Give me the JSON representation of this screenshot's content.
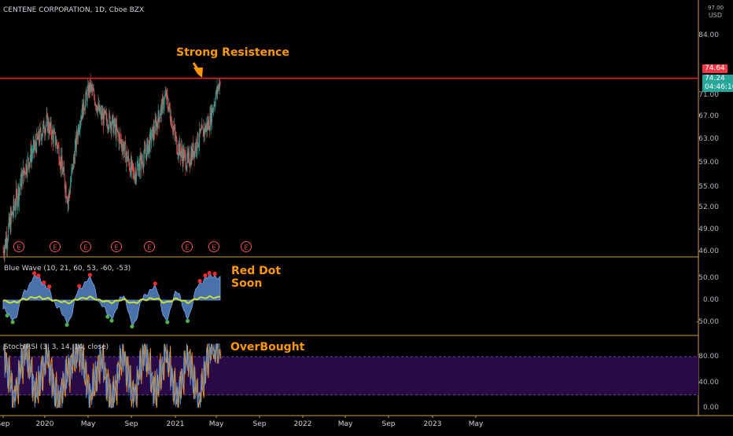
{
  "header": {
    "symbol_title": "CENTENE CORPORATION, 1D, Cboe BZX",
    "currency": "USD",
    "top_price_partial": "97.00"
  },
  "annotations": {
    "resistance": "Strong Resistence",
    "red_dot_line1": "Red Dot",
    "red_dot_line2": "Soon",
    "overbought": "OverBought"
  },
  "badges": {
    "resistance_price": "74.64",
    "last_price": "74.24",
    "countdown": "04:46:10"
  },
  "colors": {
    "background": "#000000",
    "up": "#26a69a",
    "down": "#ef5350",
    "resistance_line": "#ff1a1a",
    "annotation": "#ff9800",
    "wave_fill": "#5b8fd6",
    "signal": "#c6e03a",
    "dot_red": "#ff2a2a",
    "dot_green": "#4caf50",
    "rsi_k": "#5b8fd6",
    "rsi_d": "#ff9800",
    "rsi_band": "#2a0a45",
    "earnings": "#ef5350"
  },
  "price_pane": {
    "axis_labels": [
      "84.00",
      "71.00",
      "67.00",
      "63.00",
      "59.00",
      "55.00",
      "52.00",
      "49.00",
      "46.00"
    ],
    "earnings_marker": "E",
    "earnings_count": 8
  },
  "wave_pane": {
    "title": "Blue Wave (10, 21, 60, 53, -60, -53)",
    "axis_labels": [
      "50.00",
      "0.00",
      "-50.00"
    ]
  },
  "rsi_pane": {
    "title": "Stoch RSI (3, 3, 14, 14, close)",
    "axis_labels": [
      "80.00",
      "40.00",
      "0.00"
    ]
  },
  "time_axis": {
    "labels": [
      "Sep",
      "2020",
      "May",
      "Sep",
      "2021",
      "May",
      "Sep",
      "2022",
      "May",
      "Sep",
      "2023",
      "May"
    ]
  },
  "chart_data": [
    {
      "type": "candlestick",
      "title": "CENTENE CORPORATION, 1D, Cboe BZX",
      "ylim": [
        45,
        97
      ],
      "x_range": [
        "2019-09",
        "2021-05"
      ],
      "resistance_level": 74.64,
      "last_price": 74.24,
      "close_path": [
        {
          "date": "2019-09",
          "close": 46
        },
        {
          "date": "2019-10",
          "close": 52
        },
        {
          "date": "2019-11",
          "close": 58
        },
        {
          "date": "2019-12",
          "close": 62
        },
        {
          "date": "2020-01",
          "close": 66
        },
        {
          "date": "2020-02",
          "close": 62
        },
        {
          "date": "2020-03",
          "close": 53
        },
        {
          "date": "2020-04",
          "close": 66
        },
        {
          "date": "2020-05",
          "close": 73
        },
        {
          "date": "2020-06",
          "close": 67
        },
        {
          "date": "2020-07",
          "close": 66
        },
        {
          "date": "2020-08",
          "close": 62
        },
        {
          "date": "2020-09",
          "close": 57
        },
        {
          "date": "2020-10",
          "close": 60
        },
        {
          "date": "2020-11",
          "close": 65
        },
        {
          "date": "2020-12",
          "close": 71
        },
        {
          "date": "2021-01",
          "close": 62
        },
        {
          "date": "2021-02",
          "close": 59
        },
        {
          "date": "2021-03",
          "close": 63
        },
        {
          "date": "2021-04",
          "close": 66
        },
        {
          "date": "2021-05",
          "close": 74.24
        }
      ]
    },
    {
      "type": "area",
      "title": "Blue Wave (10, 21, 60, 53, -60, -53)",
      "ylim": [
        -70,
        70
      ],
      "series": [
        {
          "name": "Blue Wave",
          "points": [
            {
              "date": "2019-09",
              "value": -20
            },
            {
              "date": "2019-10",
              "value": -45
            },
            {
              "date": "2019-11",
              "value": 20
            },
            {
              "date": "2019-12",
              "value": 55
            },
            {
              "date": "2020-01",
              "value": 30
            },
            {
              "date": "2020-02",
              "value": -15
            },
            {
              "date": "2020-03",
              "value": -50
            },
            {
              "date": "2020-04",
              "value": 25
            },
            {
              "date": "2020-05",
              "value": 50
            },
            {
              "date": "2020-06",
              "value": -10
            },
            {
              "date": "2020-07",
              "value": -40
            },
            {
              "date": "2020-08",
              "value": 10
            },
            {
              "date": "2020-09",
              "value": -55
            },
            {
              "date": "2020-10",
              "value": 10
            },
            {
              "date": "2020-11",
              "value": 30
            },
            {
              "date": "2020-12",
              "value": -45
            },
            {
              "date": "2021-01",
              "value": 20
            },
            {
              "date": "2021-02",
              "value": -40
            },
            {
              "date": "2021-03",
              "value": 35
            },
            {
              "date": "2021-04",
              "value": 55
            },
            {
              "date": "2021-05",
              "value": 50
            }
          ]
        }
      ]
    },
    {
      "type": "line",
      "title": "Stoch RSI (3, 3, 14, 14, close)",
      "ylim": [
        -10,
        110
      ],
      "bands": [
        20,
        80
      ],
      "series": [
        {
          "name": "K",
          "points": [
            {
              "date": "2019-09",
              "value": 90
            },
            {
              "date": "2019-10",
              "value": 10
            },
            {
              "date": "2019-11",
              "value": 95
            },
            {
              "date": "2019-12",
              "value": 20
            },
            {
              "date": "2020-01",
              "value": 85
            },
            {
              "date": "2020-02",
              "value": 5
            },
            {
              "date": "2020-03",
              "value": 60
            },
            {
              "date": "2020-04",
              "value": 95
            },
            {
              "date": "2020-05",
              "value": 15
            },
            {
              "date": "2020-06",
              "value": 80
            },
            {
              "date": "2020-07",
              "value": 5
            },
            {
              "date": "2020-08",
              "value": 90
            },
            {
              "date": "2020-09",
              "value": 10
            },
            {
              "date": "2020-10",
              "value": 95
            },
            {
              "date": "2020-11",
              "value": 20
            },
            {
              "date": "2020-12",
              "value": 90
            },
            {
              "date": "2021-01",
              "value": 10
            },
            {
              "date": "2021-02",
              "value": 85
            },
            {
              "date": "2021-03",
              "value": 5
            },
            {
              "date": "2021-04",
              "value": 95
            },
            {
              "date": "2021-05",
              "value": 100
            }
          ]
        }
      ]
    }
  ]
}
